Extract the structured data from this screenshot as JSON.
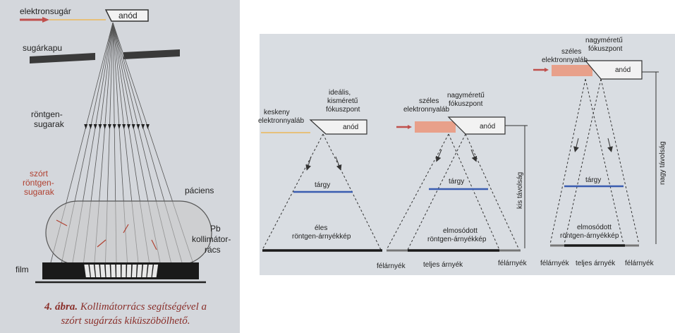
{
  "left": {
    "electron_beam": "elektronsugár",
    "anode": "anód",
    "beam_gate": "sugárkapu",
    "xray_1": "röntgen-",
    "xray_2": "sugarak",
    "scatter_1": "szórt",
    "scatter_2": "röntgen-",
    "scatter_3": "sugarak",
    "patient": "páciens",
    "pb_1": "Pb",
    "pb_2": "kollimátor-",
    "pb_3": "rács",
    "film": "film",
    "caption_label": "4. ábra.",
    "caption_text_1": "Kollimátorrács segítségével a",
    "caption_text_2": "szórt sugárzás kiküszöbölhető."
  },
  "right": {
    "d1_beam_1": "keskeny",
    "d1_beam_2": "elektronnyaláb",
    "d1_focus_1": "ideális,",
    "d1_focus_2": "kisméretű",
    "d1_focus_3": "fókuszpont",
    "d1_anode": "anód",
    "d1_object": "tárgy",
    "d1_shadow_1": "éles",
    "d1_shadow_2": "röntgen-árnyékkép",
    "d2_beam_1": "széles",
    "d2_beam_2": "elektronnyaláb",
    "d2_focus_1": "nagyméretű",
    "d2_focus_2": "fókuszpont",
    "d2_anode": "anód",
    "d2_object": "tárgy",
    "d2_distance": "kis távolság",
    "d2_shadow_1": "elmosódott",
    "d2_shadow_2": "röntgen-árnyékkép",
    "d2_penumbra_left": "félárnyék",
    "d2_umbra": "teljes árnyék",
    "d2_penumbra_right": "félárnyék",
    "d3_beam_1": "széles",
    "d3_beam_2": "elektronnyaláb",
    "d3_focus_1": "nagyméretű",
    "d3_focus_2": "fókuszpont",
    "d3_anode": "anód",
    "d3_object": "tárgy",
    "d3_distance": "nagy távolság",
    "d3_shadow_1": "elmosódott",
    "d3_shadow_2": "röntgen-árnyékkép",
    "d3_penumbra_left": "félárnyék",
    "d3_umbra": "teljes árnyék",
    "d3_penumbra_right": "félárnyék"
  },
  "colors": {
    "beam_arrow": "#c0504d",
    "wide_beam": "#e8a08a",
    "object_line": "#3a5db0",
    "scatter_text": "#b04030",
    "caption": "#8a2f2a"
  }
}
